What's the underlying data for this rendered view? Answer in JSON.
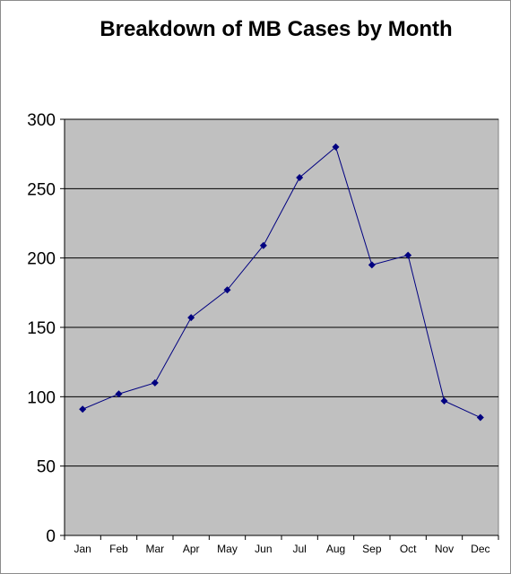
{
  "chart_data": {
    "type": "line",
    "title": "Breakdown of MB Cases by Month",
    "xlabel": "",
    "ylabel": "",
    "categories": [
      "Jan",
      "Feb",
      "Mar",
      "Apr",
      "May",
      "Jun",
      "Jul",
      "Aug",
      "Sep",
      "Oct",
      "Nov",
      "Dec"
    ],
    "series": [
      {
        "values": [
          91,
          102,
          110,
          157,
          177,
          209,
          258,
          280,
          195,
          202,
          97,
          85
        ]
      }
    ],
    "ylim": [
      0,
      300
    ],
    "yticks": [
      "0",
      "50",
      "100",
      "150",
      "200",
      "250",
      "300"
    ],
    "grid": true,
    "legend": "none",
    "colors": {
      "plot_area": "#c0c0c0",
      "line": "#000080",
      "gridline": "#000000"
    }
  }
}
